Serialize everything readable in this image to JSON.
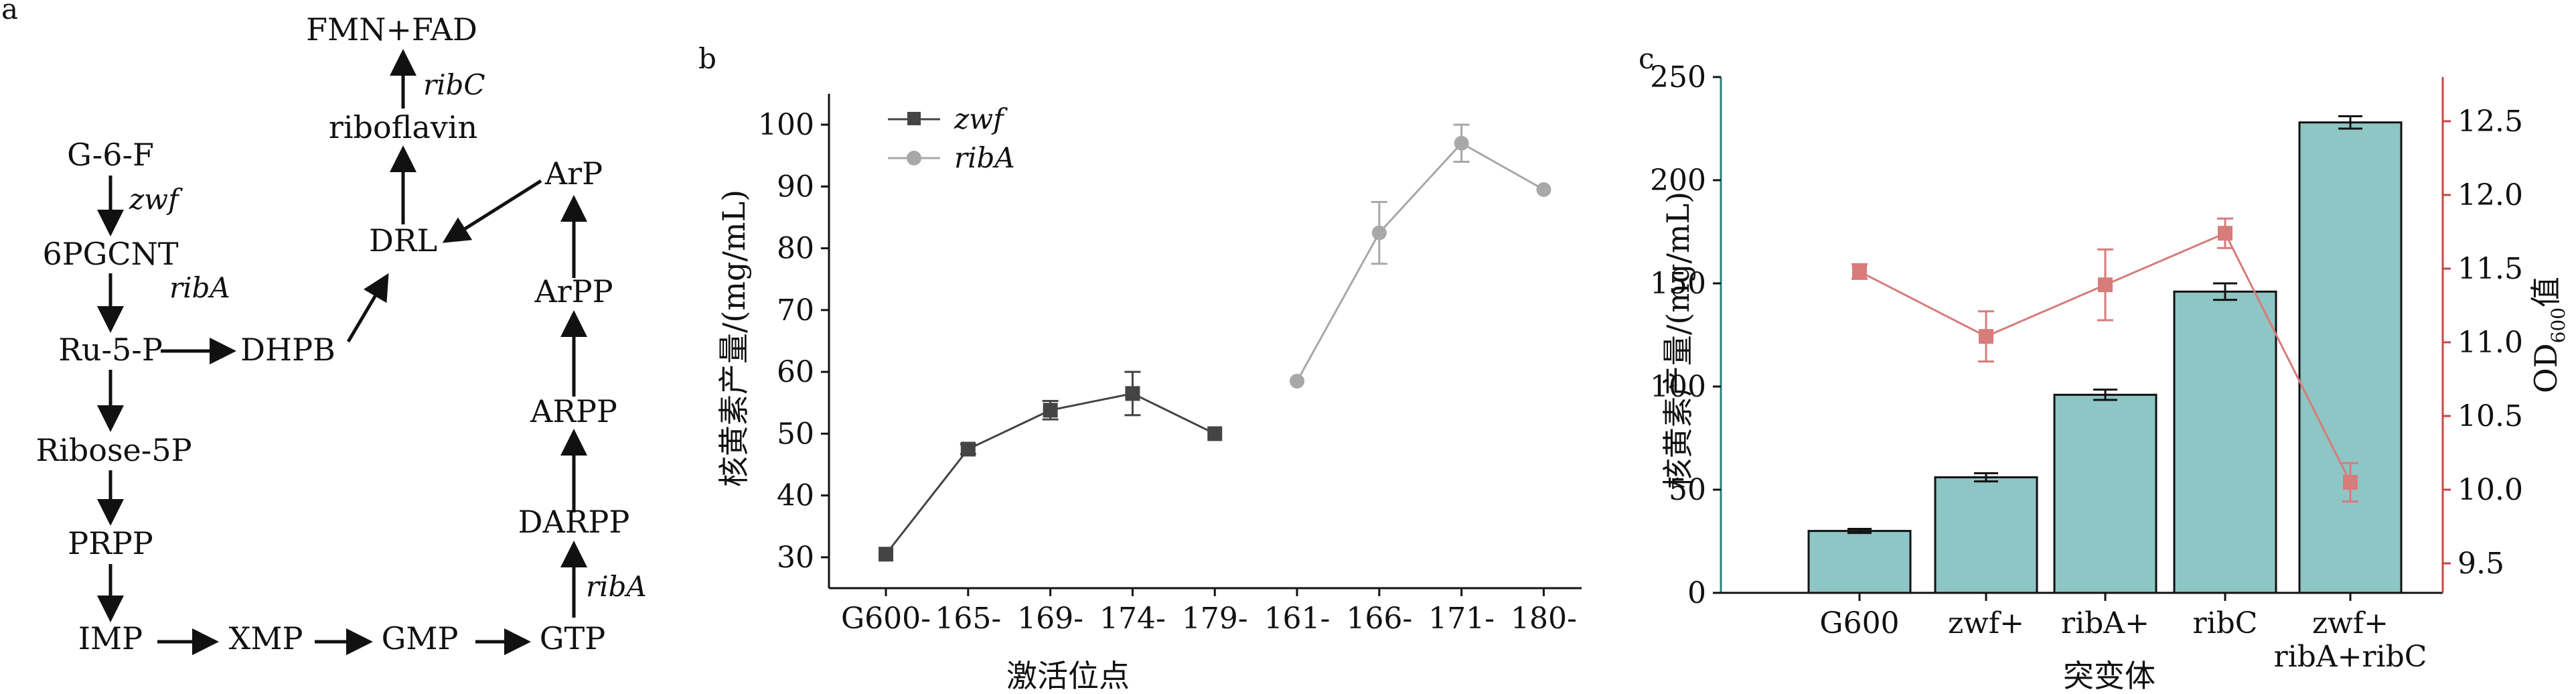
{
  "panel_a": {
    "label": "a",
    "nodes": [
      {
        "id": "g6f",
        "text": "G-6-F"
      },
      {
        "id": "pgcnt",
        "text": "6PGCNT"
      },
      {
        "id": "ru5p",
        "text": "Ru-5-P"
      },
      {
        "id": "ribose5p",
        "text": "Ribose-5P"
      },
      {
        "id": "prpp",
        "text": "PRPP"
      },
      {
        "id": "imp",
        "text": "IMP"
      },
      {
        "id": "xmp",
        "text": "XMP"
      },
      {
        "id": "gmp",
        "text": "GMP"
      },
      {
        "id": "gtp",
        "text": "GTP"
      },
      {
        "id": "darpp",
        "text": "DARPP"
      },
      {
        "id": "arpp",
        "text": "ARPP"
      },
      {
        "id": "arpp2",
        "text": "ArPP"
      },
      {
        "id": "arp",
        "text": "ArP"
      },
      {
        "id": "dhpb",
        "text": "DHPB"
      },
      {
        "id": "drl",
        "text": "DRL"
      },
      {
        "id": "riboflavin",
        "text": "riboflavin"
      },
      {
        "id": "fmnfad",
        "text": "FMN+FAD"
      }
    ],
    "enzymes": {
      "zwf": "zwf",
      "ribA1": "ribA",
      "ribA2": "ribA",
      "ribC": "ribC"
    }
  },
  "panel_b": {
    "label": "b",
    "xlabel": "激活位点",
    "ylabel": "核黄素产量/(mg/mL)"
  },
  "panel_c": {
    "label": "c",
    "xlabel": "突变体",
    "ylabel_left": "核黄素产量/(mg/mL)",
    "ylabel_right_main": "OD",
    "ylabel_right_sub": "600",
    "ylabel_right_tail": "值"
  },
  "chart_data": [
    {
      "type": "line",
      "categories": [
        "G600-",
        "165-",
        "169-",
        "174-",
        "179-",
        "161-",
        "166-",
        "171-",
        "180-"
      ],
      "series": [
        {
          "name": "zwf",
          "color": "#444444",
          "marker": "square",
          "values": [
            30.5,
            47.5,
            53.8,
            56.5,
            50.0,
            null,
            null,
            null,
            null
          ],
          "errors": [
            0,
            0.8,
            1.5,
            3.5,
            0,
            0,
            0,
            0,
            0
          ]
        },
        {
          "name": "ribA",
          "color": "#a8a8a8",
          "marker": "circle",
          "values": [
            null,
            null,
            null,
            null,
            null,
            58.5,
            82.5,
            97.0,
            89.5
          ],
          "errors": [
            0,
            0,
            0,
            0,
            0,
            0,
            5.0,
            3.0,
            0
          ]
        }
      ],
      "ylim": [
        25,
        105
      ],
      "yticks": [
        30,
        40,
        50,
        60,
        70,
        80,
        90,
        100
      ],
      "legend_position": "top-left"
    },
    {
      "type": "bar",
      "categories": [
        [
          "G600"
        ],
        [
          "zwf+"
        ],
        [
          "ribA+"
        ],
        [
          "ribC"
        ],
        [
          "zwf+",
          "ribA+ribC"
        ]
      ],
      "series": [
        {
          "kind": "bar",
          "axis": "left",
          "color": "#8ec5c5",
          "values": [
            30,
            56,
            96,
            146,
            228
          ],
          "errors": [
            1,
            2,
            2.5,
            4,
            3
          ]
        },
        {
          "kind": "line",
          "axis": "right",
          "color": "#d77b7b",
          "marker": "square",
          "values": [
            11.48,
            11.04,
            11.39,
            11.74,
            10.05
          ],
          "errors": [
            0.05,
            0.17,
            0.24,
            0.1,
            0.13
          ]
        }
      ],
      "ylim_left": [
        0,
        250
      ],
      "yticks_left": [
        0,
        50,
        100,
        150,
        200,
        250
      ],
      "ylim_right": [
        9.3,
        12.8
      ],
      "yticks_right": [
        9.5,
        10.0,
        10.5,
        11.0,
        11.5,
        12.0,
        12.5
      ],
      "yticklabels_right": [
        "9.5",
        "10.0",
        "10.5",
        "11.0",
        "11.5",
        "12.0",
        "12.5"
      ]
    }
  ]
}
